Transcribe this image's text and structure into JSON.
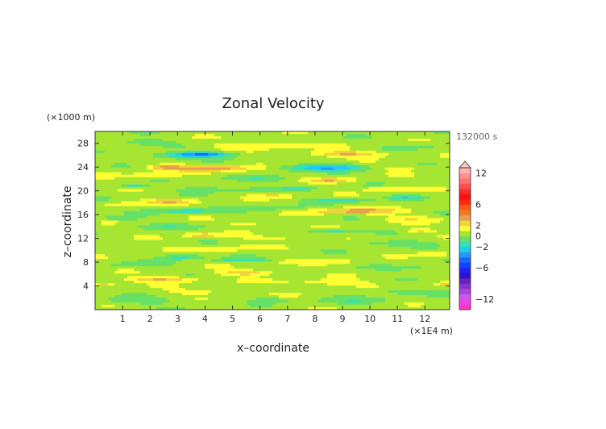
{
  "chart_data": {
    "type": "heatmap",
    "title": "Zonal Velocity",
    "xlabel": "x–coordinate",
    "ylabel": "z–coordinate",
    "x_unit": "(×1E4 m)",
    "y_unit": "(×1000 m)",
    "time_label": "132000 s",
    "x_ticks": [
      "1",
      "2",
      "3",
      "4",
      "5",
      "6",
      "7",
      "8",
      "9",
      "10",
      "11",
      "12"
    ],
    "x_tick_values": [
      1,
      2,
      3,
      4,
      5,
      6,
      7,
      8,
      9,
      10,
      11,
      12
    ],
    "y_ticks": [
      "4",
      "8",
      "12",
      "16",
      "20",
      "24",
      "28"
    ],
    "y_tick_values": [
      4,
      8,
      12,
      16,
      20,
      24,
      28
    ],
    "xlim": [
      0,
      12.9
    ],
    "ylim": [
      0,
      30
    ],
    "colorbar": {
      "tick_labels": [
        "12",
        "6",
        "2",
        "0",
        "−2",
        "−6",
        "−12"
      ],
      "tick_values": [
        12,
        6,
        2,
        0,
        -2,
        -6,
        -12
      ],
      "levels": [
        -14,
        -13,
        -12,
        -11,
        -10,
        -9,
        -8,
        -7,
        -6,
        -5,
        -4,
        -3,
        -2,
        -1,
        0,
        1,
        2,
        3,
        4,
        5,
        6,
        7,
        8,
        9,
        10,
        11,
        12,
        13,
        14
      ],
      "colors": [
        "#ff33cc",
        "#ee44dd",
        "#cc55ee",
        "#aa44dd",
        "#8833cc",
        "#6622bb",
        "#3311cc",
        "#2222ee",
        "#1144ff",
        "#1a66ff",
        "#2299ff",
        "#22ccee",
        "#33e0c0",
        "#66e066",
        "#a6e632",
        "#ffff33",
        "#f0d23c",
        "#e8a050",
        "#f07828",
        "#ff5a14",
        "#ff2810",
        "#ff1010",
        "#ff2a2a",
        "#ff5050",
        "#ff7070",
        "#ff9090",
        "#ffb0b0",
        "#ffc6c6"
      ],
      "extend": "max"
    },
    "field": {
      "description_unused": "",
      "background_value": 0.5,
      "features": [
        {
          "x": 3.3,
          "z": 25.9,
          "sx": 1.4,
          "sz": 0.5,
          "v": -2.4
        },
        {
          "x": 4.0,
          "z": 26.2,
          "sx": 1.0,
          "sz": 0.4,
          "v": -3.2
        },
        {
          "x": 4.3,
          "z": 23.8,
          "sx": 1.6,
          "sz": 0.6,
          "v": 3.0
        },
        {
          "x": 2.5,
          "z": 24.0,
          "sx": 0.6,
          "sz": 0.4,
          "v": 2.4
        },
        {
          "x": 9.2,
          "z": 26.2,
          "sx": 1.4,
          "sz": 0.5,
          "v": 2.6
        },
        {
          "x": 8.3,
          "z": 23.9,
          "sx": 1.6,
          "sz": 0.6,
          "v": -3.4
        },
        {
          "x": 8.6,
          "z": 21.8,
          "sx": 0.9,
          "sz": 0.4,
          "v": 2.4
        },
        {
          "x": 2.8,
          "z": 18.2,
          "sx": 0.9,
          "sz": 0.4,
          "v": 2.4
        },
        {
          "x": 1.4,
          "z": 20.8,
          "sx": 0.5,
          "sz": 0.3,
          "v": -2.2
        },
        {
          "x": 3.3,
          "z": 16.6,
          "sx": 1.2,
          "sz": 0.4,
          "v": -2.2
        },
        {
          "x": 9.4,
          "z": 16.6,
          "sx": 1.6,
          "sz": 0.5,
          "v": 3.0
        },
        {
          "x": 8.9,
          "z": 18.4,
          "sx": 1.0,
          "sz": 0.4,
          "v": -2.2
        },
        {
          "x": 10.6,
          "z": 20.3,
          "sx": 0.8,
          "sz": 0.3,
          "v": 2.2
        },
        {
          "x": 11.3,
          "z": 18.9,
          "sx": 0.6,
          "sz": 0.3,
          "v": -2.0
        },
        {
          "x": 6.5,
          "z": 19.1,
          "sx": 0.7,
          "sz": 0.3,
          "v": 2.0
        },
        {
          "x": 7.3,
          "z": 20.4,
          "sx": 0.6,
          "sz": 0.3,
          "v": -2.0
        },
        {
          "x": 5.5,
          "z": 14.5,
          "sx": 0.6,
          "sz": 0.3,
          "v": 2.0
        },
        {
          "x": 0.9,
          "z": 15.4,
          "sx": 0.6,
          "sz": 0.3,
          "v": -2.0
        },
        {
          "x": 3.9,
          "z": 12.5,
          "sx": 0.6,
          "sz": 0.4,
          "v": 2.4
        },
        {
          "x": 8.7,
          "z": 13.2,
          "sx": 0.9,
          "sz": 0.3,
          "v": -2.0
        },
        {
          "x": 11.8,
          "z": 13.3,
          "sx": 0.5,
          "sz": 0.3,
          "v": 2.0
        },
        {
          "x": 3.2,
          "z": 8.9,
          "sx": 0.7,
          "sz": 0.4,
          "v": -2.2
        },
        {
          "x": 5.4,
          "z": 8.3,
          "sx": 1.0,
          "sz": 0.3,
          "v": -2.2
        },
        {
          "x": 12.3,
          "z": 9.3,
          "sx": 0.5,
          "sz": 0.3,
          "v": 2.0
        },
        {
          "x": 2.4,
          "z": 5.1,
          "sx": 1.3,
          "sz": 0.45,
          "v": 2.6
        },
        {
          "x": 5.5,
          "z": 6.2,
          "sx": 1.0,
          "sz": 0.45,
          "v": 2.4
        },
        {
          "x": 0.3,
          "z": 4.3,
          "sx": 0.4,
          "sz": 0.3,
          "v": 2.2
        },
        {
          "x": 12.7,
          "z": 4.3,
          "sx": 0.3,
          "sz": 0.3,
          "v": 2.0
        },
        {
          "x": 6.4,
          "z": 1.6,
          "sx": 0.6,
          "sz": 0.3,
          "v": -1.6
        },
        {
          "x": 6.0,
          "z": 27.6,
          "sx": 2.0,
          "sz": 0.6,
          "v": 1.2
        },
        {
          "x": 11.0,
          "z": 23.8,
          "sx": 1.2,
          "sz": 0.5,
          "v": 1.0
        },
        {
          "x": 1.5,
          "z": 28.2,
          "sx": 1.2,
          "sz": 0.6,
          "v": -1.2
        },
        {
          "x": 11.6,
          "z": 27.5,
          "sx": 1.0,
          "sz": 0.5,
          "v": -1.0
        },
        {
          "x": 6.0,
          "z": 22.0,
          "sx": 1.5,
          "sz": 0.5,
          "v": -1.2
        },
        {
          "x": 2.0,
          "z": 22.5,
          "sx": 1.2,
          "sz": 0.5,
          "v": 1.2
        },
        {
          "x": 4.5,
          "z": 20.3,
          "sx": 1.5,
          "sz": 0.5,
          "v": -1.0
        },
        {
          "x": 1.0,
          "z": 17.8,
          "sx": 1.0,
          "sz": 0.5,
          "v": 1.0
        },
        {
          "x": 6.5,
          "z": 17.0,
          "sx": 1.5,
          "sz": 0.5,
          "v": -1.0
        },
        {
          "x": 11.5,
          "z": 15.3,
          "sx": 1.2,
          "sz": 0.5,
          "v": 1.2
        },
        {
          "x": 2.5,
          "z": 14.0,
          "sx": 1.5,
          "sz": 0.5,
          "v": -1.0
        },
        {
          "x": 7.0,
          "z": 12.0,
          "sx": 1.8,
          "sz": 0.5,
          "v": 1.0
        },
        {
          "x": 10.5,
          "z": 11.2,
          "sx": 1.5,
          "sz": 0.5,
          "v": -1.2
        },
        {
          "x": 1.0,
          "z": 10.5,
          "sx": 1.0,
          "sz": 0.5,
          "v": 1.0
        },
        {
          "x": 4.5,
          "z": 10.3,
          "sx": 1.5,
          "sz": 0.5,
          "v": 1.2
        },
        {
          "x": 8.5,
          "z": 8.0,
          "sx": 1.8,
          "sz": 0.5,
          "v": 1.0
        },
        {
          "x": 11.5,
          "z": 7.0,
          "sx": 1.2,
          "sz": 0.5,
          "v": -1.0
        },
        {
          "x": 1.5,
          "z": 7.5,
          "sx": 1.2,
          "sz": 0.5,
          "v": -1.0
        },
        {
          "x": 8.5,
          "z": 4.5,
          "sx": 1.8,
          "sz": 0.6,
          "v": 1.2
        },
        {
          "x": 4.0,
          "z": 3.0,
          "sx": 1.5,
          "sz": 0.5,
          "v": 1.0
        },
        {
          "x": 11.0,
          "z": 3.0,
          "sx": 1.5,
          "sz": 0.5,
          "v": -1.0
        },
        {
          "x": 1.5,
          "z": 1.5,
          "sx": 1.5,
          "sz": 0.6,
          "v": -1.2
        },
        {
          "x": 9.5,
          "z": 1.5,
          "sx": 1.5,
          "sz": 0.6,
          "v": -1.0
        }
      ]
    }
  }
}
